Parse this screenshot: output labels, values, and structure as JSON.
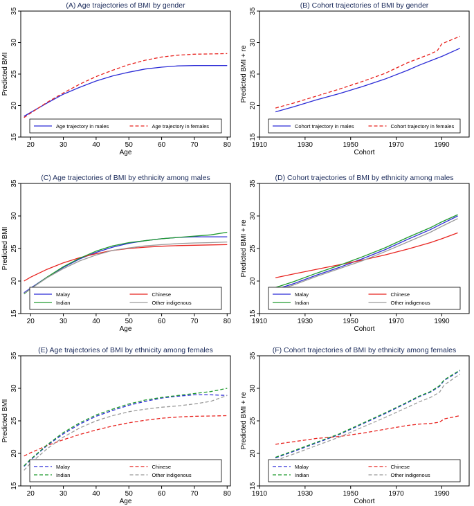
{
  "chart_data": [
    {
      "id": "A",
      "type": "line",
      "title": "(A) Age trajectories of BMI by gender",
      "xlabel": "Age",
      "ylabel": "Predicted BMI",
      "xlim": [
        17,
        81
      ],
      "ylim": [
        15,
        35
      ],
      "xticks": [
        20,
        30,
        40,
        50,
        60,
        70,
        80
      ],
      "yticks": [
        15,
        20,
        25,
        30,
        35
      ],
      "legend_columns": 2,
      "series": [
        {
          "name": "Age trajectory in males",
          "color": "#2b2bd6",
          "dash": "solid",
          "x": [
            18,
            20,
            25,
            30,
            35,
            40,
            45,
            50,
            55,
            60,
            65,
            70,
            75,
            80
          ],
          "y": [
            18.3,
            18.9,
            20.4,
            21.8,
            22.9,
            23.9,
            24.7,
            25.3,
            25.8,
            26.1,
            26.3,
            26.35,
            26.35,
            26.35
          ]
        },
        {
          "name": "Age trajectory in females",
          "color": "#e8231f",
          "dash": "dashed",
          "x": [
            18,
            20,
            25,
            30,
            35,
            40,
            45,
            50,
            55,
            60,
            65,
            70,
            75,
            80
          ],
          "y": [
            18.1,
            18.8,
            20.5,
            22.0,
            23.4,
            24.6,
            25.6,
            26.5,
            27.2,
            27.7,
            28.0,
            28.15,
            28.2,
            28.25
          ]
        }
      ]
    },
    {
      "id": "B",
      "type": "line",
      "title": "(B) Cohort trajectories of BMI by gender",
      "xlabel": "Cohort",
      "ylabel": "Predicted BMI + re",
      "xlim": [
        1910,
        2002
      ],
      "ylim": [
        15,
        35
      ],
      "xticks": [
        1910,
        1930,
        1950,
        1970,
        1990
      ],
      "yticks": [
        15,
        20,
        25,
        30,
        35
      ],
      "legend_columns": 2,
      "series": [
        {
          "name": "Cohort trajectory in males",
          "color": "#2b2bd6",
          "dash": "solid",
          "x": [
            1917,
            1925,
            1935,
            1945,
            1955,
            1965,
            1975,
            1980,
            1985,
            1990,
            1998
          ],
          "y": [
            19.0,
            19.8,
            20.9,
            21.9,
            23.0,
            24.2,
            25.6,
            26.4,
            27.1,
            27.8,
            29.1
          ]
        },
        {
          "name": "Cohort trajectory in females",
          "color": "#e8231f",
          "dash": "dashed",
          "x": [
            1917,
            1925,
            1935,
            1945,
            1955,
            1965,
            1975,
            1980,
            1985,
            1988,
            1990,
            1998
          ],
          "y": [
            19.6,
            20.4,
            21.5,
            22.6,
            23.8,
            25.1,
            26.8,
            27.5,
            28.2,
            28.7,
            29.8,
            31.0
          ]
        }
      ]
    },
    {
      "id": "C",
      "type": "line",
      "title": "(C) Age trajectories of BMI by ethnicity among males",
      "xlabel": "Age",
      "ylabel": "Predicted BMI",
      "xlim": [
        17,
        81
      ],
      "ylim": [
        15,
        35
      ],
      "xticks": [
        20,
        30,
        40,
        50,
        60,
        70,
        80
      ],
      "yticks": [
        15,
        20,
        25,
        30,
        35
      ],
      "legend_columns": 2,
      "series": [
        {
          "name": "Malay",
          "color": "#2b2bd6",
          "dash": "solid",
          "x": [
            18,
            20,
            25,
            30,
            35,
            40,
            45,
            50,
            55,
            60,
            65,
            70,
            75,
            80
          ],
          "y": [
            18.2,
            18.9,
            20.6,
            22.1,
            23.4,
            24.4,
            25.2,
            25.8,
            26.2,
            26.5,
            26.7,
            26.8,
            26.8,
            26.8
          ]
        },
        {
          "name": "Chinese",
          "color": "#e8231f",
          "dash": "solid",
          "x": [
            18,
            20,
            25,
            30,
            35,
            40,
            45,
            50,
            55,
            60,
            65,
            70,
            75,
            80
          ],
          "y": [
            20.0,
            20.6,
            21.8,
            22.8,
            23.6,
            24.2,
            24.7,
            25.0,
            25.2,
            25.35,
            25.45,
            25.5,
            25.55,
            25.6
          ]
        },
        {
          "name": "Indian",
          "color": "#1f9a2e",
          "dash": "solid",
          "x": [
            18,
            20,
            25,
            30,
            35,
            40,
            45,
            50,
            55,
            60,
            65,
            70,
            75,
            80
          ],
          "y": [
            18.0,
            18.8,
            20.6,
            22.2,
            23.5,
            24.6,
            25.4,
            25.9,
            26.2,
            26.5,
            26.7,
            26.9,
            27.1,
            27.5
          ]
        },
        {
          "name": "Other indigenous",
          "color": "#9a9a9a",
          "dash": "solid",
          "x": [
            18,
            20,
            25,
            30,
            35,
            40,
            45,
            50,
            55,
            60,
            65,
            70,
            75,
            80
          ],
          "y": [
            18.1,
            18.8,
            20.5,
            21.9,
            23.1,
            24.0,
            24.7,
            25.1,
            25.4,
            25.6,
            25.75,
            25.85,
            25.9,
            26.0
          ]
        }
      ]
    },
    {
      "id": "D",
      "type": "line",
      "title": "(D) Cohort trajectories of BMI by ethnicity among males",
      "xlabel": "Cohort",
      "ylabel": "Predicted BMI + re",
      "xlim": [
        1910,
        2002
      ],
      "ylim": [
        15,
        35
      ],
      "xticks": [
        1910,
        1930,
        1950,
        1970,
        1990
      ],
      "yticks": [
        15,
        20,
        25,
        30,
        35
      ],
      "legend_columns": 2,
      "series": [
        {
          "name": "Malay",
          "color": "#2b2bd6",
          "dash": "solid",
          "x": [
            1917,
            1925,
            1935,
            1945,
            1955,
            1965,
            1975,
            1985,
            1990,
            1997
          ],
          "y": [
            18.7,
            19.6,
            20.9,
            22.1,
            23.4,
            24.8,
            26.4,
            27.9,
            28.8,
            30.0
          ]
        },
        {
          "name": "Chinese",
          "color": "#e8231f",
          "dash": "solid",
          "x": [
            1917,
            1925,
            1935,
            1945,
            1955,
            1965,
            1975,
            1985,
            1990,
            1997
          ],
          "y": [
            20.5,
            21.1,
            21.8,
            22.5,
            23.2,
            24.0,
            24.9,
            25.9,
            26.5,
            27.4
          ]
        },
        {
          "name": "Indian",
          "color": "#1f9a2e",
          "dash": "solid",
          "x": [
            1917,
            1925,
            1935,
            1945,
            1955,
            1965,
            1975,
            1985,
            1990,
            1997
          ],
          "y": [
            19.0,
            19.9,
            21.2,
            22.4,
            23.7,
            25.1,
            26.7,
            28.2,
            29.1,
            30.2
          ]
        },
        {
          "name": "Other indigenous",
          "color": "#9a9a9a",
          "dash": "solid",
          "x": [
            1917,
            1925,
            1935,
            1945,
            1955,
            1965,
            1975,
            1985,
            1990,
            1997
          ],
          "y": [
            18.5,
            19.4,
            20.7,
            21.9,
            23.1,
            24.5,
            26.0,
            27.5,
            28.4,
            29.6
          ]
        }
      ]
    },
    {
      "id": "E",
      "type": "line",
      "title": "(E) Age trajectories of BMI by ethnicity among females",
      "xlabel": "Age",
      "ylabel": "Predicted BMI",
      "xlim": [
        17,
        81
      ],
      "ylim": [
        15,
        35
      ],
      "xticks": [
        20,
        30,
        40,
        50,
        60,
        70,
        80
      ],
      "yticks": [
        15,
        20,
        25,
        30,
        35
      ],
      "legend_columns": 2,
      "series": [
        {
          "name": "Malay",
          "color": "#2b2bd6",
          "dash": "dashed",
          "x": [
            18,
            20,
            25,
            30,
            35,
            40,
            45,
            50,
            55,
            60,
            65,
            70,
            75,
            80
          ],
          "y": [
            18.0,
            19.0,
            21.2,
            23.0,
            24.5,
            25.7,
            26.6,
            27.4,
            28.0,
            28.5,
            28.8,
            29.0,
            29.0,
            28.9
          ]
        },
        {
          "name": "Chinese",
          "color": "#e8231f",
          "dash": "dashed",
          "x": [
            18,
            20,
            25,
            30,
            35,
            40,
            45,
            50,
            55,
            60,
            65,
            70,
            75,
            80
          ],
          "y": [
            19.6,
            20.1,
            21.2,
            22.1,
            22.9,
            23.6,
            24.2,
            24.7,
            25.1,
            25.4,
            25.6,
            25.7,
            25.75,
            25.8
          ]
        },
        {
          "name": "Indian",
          "color": "#1f9a2e",
          "dash": "dashed",
          "x": [
            18,
            20,
            25,
            30,
            35,
            40,
            45,
            50,
            55,
            60,
            65,
            70,
            75,
            80
          ],
          "y": [
            18.1,
            19.1,
            21.3,
            23.2,
            24.7,
            25.9,
            26.8,
            27.6,
            28.2,
            28.6,
            28.9,
            29.2,
            29.5,
            30.0
          ]
        },
        {
          "name": "Other indigenous",
          "color": "#9a9a9a",
          "dash": "dashed",
          "x": [
            18,
            20,
            25,
            30,
            35,
            40,
            45,
            50,
            55,
            60,
            65,
            70,
            75,
            80
          ],
          "y": [
            17.4,
            18.5,
            20.7,
            22.5,
            23.9,
            25.0,
            25.8,
            26.4,
            26.8,
            27.1,
            27.3,
            27.6,
            28.0,
            28.9
          ]
        }
      ]
    },
    {
      "id": "F",
      "type": "line",
      "title": "(F) Cohort trajectories of BMI by ethnicity among females",
      "xlabel": "Cohort",
      "ylabel": "Predicted BMI + re",
      "xlim": [
        1910,
        2002
      ],
      "ylim": [
        15,
        35
      ],
      "xticks": [
        1910,
        1930,
        1950,
        1970,
        1990
      ],
      "yticks": [
        15,
        20,
        25,
        30,
        35
      ],
      "legend_columns": 2,
      "series": [
        {
          "name": "Malay",
          "color": "#2b2bd6",
          "dash": "dashed",
          "x": [
            1917,
            1925,
            1935,
            1945,
            1955,
            1965,
            1975,
            1980,
            1985,
            1989,
            1991,
            1998
          ],
          "y": [
            19.3,
            20.3,
            21.6,
            22.9,
            24.5,
            26.1,
            27.8,
            28.7,
            29.4,
            30.3,
            31.2,
            32.7
          ]
        },
        {
          "name": "Chinese",
          "color": "#e8231f",
          "dash": "dashed",
          "x": [
            1917,
            1925,
            1935,
            1945,
            1955,
            1965,
            1975,
            1980,
            1985,
            1989,
            1991,
            1998
          ],
          "y": [
            21.4,
            21.8,
            22.3,
            22.6,
            23.1,
            23.7,
            24.3,
            24.5,
            24.6,
            24.8,
            25.3,
            25.8
          ]
        },
        {
          "name": "Indian",
          "color": "#1f9a2e",
          "dash": "dashed",
          "x": [
            1917,
            1925,
            1935,
            1945,
            1955,
            1965,
            1975,
            1980,
            1985,
            1989,
            1991,
            1998
          ],
          "y": [
            19.4,
            20.4,
            21.7,
            23.0,
            24.6,
            26.2,
            27.9,
            28.8,
            29.5,
            30.4,
            31.3,
            32.8
          ]
        },
        {
          "name": "Other indigenous",
          "color": "#9a9a9a",
          "dash": "dashed",
          "x": [
            1917,
            1925,
            1935,
            1945,
            1955,
            1965,
            1975,
            1980,
            1985,
            1989,
            1991,
            1998
          ],
          "y": [
            18.9,
            19.9,
            21.2,
            22.5,
            24.0,
            25.5,
            27.1,
            27.9,
            28.6,
            29.4,
            30.5,
            32.2
          ]
        }
      ]
    }
  ]
}
